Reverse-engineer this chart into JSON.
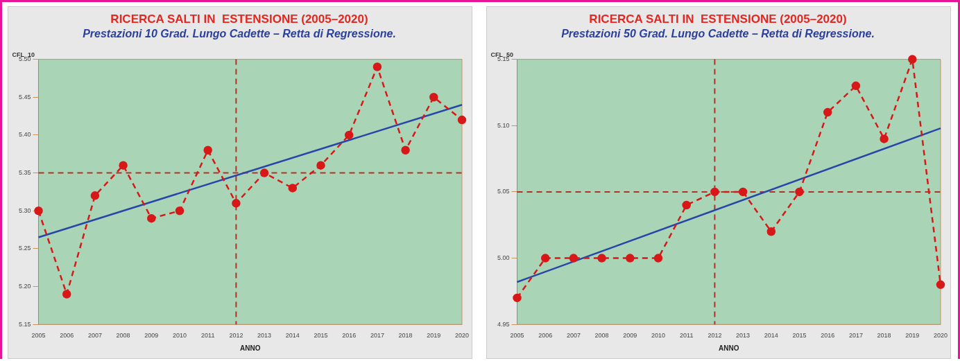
{
  "chart_data": [
    {
      "type": "line",
      "title": "RICERCA SALTI IN  ESTENSIONE (2005–2020)",
      "subtitle": "Prestazioni 10 Grad. Lungo Cadette – Retta di Regressione.",
      "xlabel": "ANNO",
      "ylabel": "CFL_10",
      "x": [
        2005,
        2006,
        2007,
        2008,
        2009,
        2010,
        2011,
        2012,
        2013,
        2014,
        2015,
        2016,
        2017,
        2018,
        2019,
        2020
      ],
      "series": [
        {
          "color": "#d81818",
          "values": [
            5.3,
            5.19,
            5.32,
            5.36,
            5.29,
            5.3,
            5.38,
            5.31,
            5.35,
            5.33,
            5.36,
            5.4,
            5.49,
            5.38,
            5.45,
            5.42
          ],
          "line_style": "dashed",
          "marker": "circle"
        },
        {
          "type": "line",
          "color": "#2846a8",
          "values": [
            5.265,
            null,
            null,
            null,
            null,
            null,
            null,
            null,
            null,
            null,
            null,
            null,
            null,
            null,
            null,
            5.44
          ],
          "line_style": "solid",
          "marker": "none"
        }
      ],
      "xlim": [
        2005,
        2020
      ],
      "xticks": [
        2005,
        2006,
        2007,
        2008,
        2009,
        2010,
        2011,
        2012,
        2013,
        2014,
        2015,
        2016,
        2017,
        2018,
        2019,
        2020
      ],
      "ylim": [
        5.15,
        5.5
      ],
      "yticks": [
        5.15,
        {
          "value": 5.2,
          "label": "5.20"
        },
        5.25,
        {
          "value": 5.3,
          "label": "5.30"
        },
        5.35,
        {
          "value": 5.4,
          "label": "5.40"
        },
        5.45,
        {
          "value": 5.5,
          "label": "5.50"
        }
      ],
      "ref_lines": [
        {
          "axis": "y",
          "value": 5.35,
          "color": "#b0302a",
          "line_style": "dashed"
        },
        {
          "axis": "x",
          "value": 2012,
          "color": "#b0302a",
          "line_style": "dashed"
        }
      ],
      "grid": false,
      "legend": false
    },
    {
      "type": "line",
      "title": "RICERCA SALTI IN  ESTENSIONE (2005–2020)",
      "subtitle": "Prestazioni 50 Grad. Lungo Cadette – Retta di Regressione.",
      "xlabel": "ANNO",
      "ylabel": "CFL_50",
      "x": [
        2005,
        2006,
        2007,
        2008,
        2009,
        2010,
        2011,
        2012,
        2013,
        2014,
        2015,
        2016,
        2017,
        2018,
        2019,
        2020
      ],
      "series": [
        {
          "color": "#d81818",
          "values": [
            4.97,
            5.0,
            5.0,
            5.0,
            5.0,
            5.0,
            5.04,
            5.05,
            5.05,
            5.02,
            5.05,
            5.11,
            5.13,
            5.09,
            5.15,
            4.98
          ],
          "line_style": "dashed",
          "marker": "circle"
        },
        {
          "type": "line",
          "color": "#2846a8",
          "values": [
            4.982,
            null,
            null,
            null,
            null,
            null,
            null,
            null,
            null,
            null,
            null,
            null,
            null,
            null,
            null,
            5.098
          ],
          "line_style": "solid",
          "marker": "none"
        }
      ],
      "xlim": [
        2005,
        2020
      ],
      "xticks": [
        2005,
        2006,
        2007,
        2008,
        2009,
        2010,
        2011,
        2012,
        2013,
        2014,
        2015,
        2016,
        2017,
        2018,
        2019,
        2020
      ],
      "ylim": [
        4.95,
        5.15
      ],
      "yticks": [
        4.95,
        {
          "value": 5.0,
          "label": "5.00"
        },
        5.05,
        {
          "value": 5.1,
          "label": "5.10"
        },
        5.15
      ],
      "ref_lines": [
        {
          "axis": "y",
          "value": 5.05,
          "color": "#b0302a",
          "line_style": "dashed"
        },
        {
          "axis": "x",
          "value": 2012,
          "color": "#b0302a",
          "line_style": "dashed"
        }
      ],
      "grid": false,
      "legend": false
    }
  ]
}
